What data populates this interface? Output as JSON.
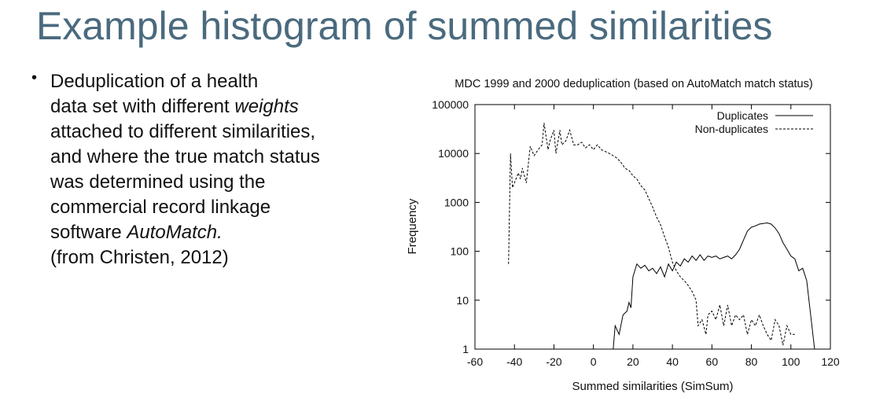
{
  "slide": {
    "title": "Example histogram of summed similarities",
    "bullet_lines": [
      [
        {
          "text": "Deduplication of a health"
        }
      ],
      [
        {
          "text": "data set with different "
        },
        {
          "text": "weights",
          "italic": true
        }
      ],
      [
        {
          "text": "attached to different similarities,"
        }
      ],
      [
        {
          "text": "and where the true match status"
        }
      ],
      [
        {
          "text": "was determined using the"
        }
      ],
      [
        {
          "text": "commercial record linkage"
        }
      ],
      [
        {
          "text": "software "
        },
        {
          "text": "AutoMatch.",
          "italic": true
        }
      ],
      [
        {
          "text": "(from Christen, 2012)"
        }
      ]
    ]
  },
  "chart_data": {
    "type": "line",
    "title": "MDC 1999 and 2000 deduplication (based on AutoMatch match status)",
    "xlabel": "Summed similarities (SimSum)",
    "ylabel": "Frequency",
    "xlim": [
      -60,
      120
    ],
    "ylim": [
      1,
      100000
    ],
    "y_scale": "log",
    "grid": false,
    "legend_position": "top-right",
    "x_ticks": [
      -60,
      -40,
      -20,
      0,
      20,
      40,
      60,
      80,
      100,
      120
    ],
    "y_ticks": [
      1,
      10,
      100,
      1000,
      10000,
      100000
    ],
    "y_tick_labels": [
      "1",
      "10",
      "100",
      "1000",
      "10000",
      "100000"
    ],
    "series": [
      {
        "name": "Duplicates",
        "style": "solid",
        "points": [
          [
            -4,
            1
          ],
          [
            2,
            1
          ],
          [
            6,
            1
          ],
          [
            10,
            1
          ],
          [
            11,
            3
          ],
          [
            13,
            2
          ],
          [
            15,
            5
          ],
          [
            17,
            6
          ],
          [
            18,
            9
          ],
          [
            19,
            7
          ],
          [
            20,
            30
          ],
          [
            22,
            55
          ],
          [
            24,
            45
          ],
          [
            26,
            52
          ],
          [
            28,
            40
          ],
          [
            30,
            45
          ],
          [
            32,
            35
          ],
          [
            34,
            48
          ],
          [
            36,
            30
          ],
          [
            38,
            55
          ],
          [
            40,
            40
          ],
          [
            42,
            60
          ],
          [
            44,
            50
          ],
          [
            46,
            70
          ],
          [
            48,
            60
          ],
          [
            50,
            80
          ],
          [
            52,
            65
          ],
          [
            54,
            85
          ],
          [
            56,
            65
          ],
          [
            58,
            80
          ],
          [
            60,
            75
          ],
          [
            62,
            80
          ],
          [
            64,
            70
          ],
          [
            66,
            75
          ],
          [
            68,
            80
          ],
          [
            70,
            70
          ],
          [
            72,
            85
          ],
          [
            74,
            110
          ],
          [
            76,
            170
          ],
          [
            78,
            260
          ],
          [
            80,
            310
          ],
          [
            82,
            330
          ],
          [
            84,
            360
          ],
          [
            86,
            370
          ],
          [
            88,
            380
          ],
          [
            90,
            360
          ],
          [
            92,
            300
          ],
          [
            94,
            230
          ],
          [
            96,
            150
          ],
          [
            98,
            110
          ],
          [
            100,
            80
          ],
          [
            102,
            70
          ],
          [
            104,
            40
          ],
          [
            106,
            45
          ],
          [
            108,
            25
          ],
          [
            110,
            5
          ],
          [
            112,
            1
          ],
          [
            114,
            1
          ]
        ]
      },
      {
        "name": "Non-duplicates",
        "style": "dashed",
        "points": [
          [
            -43,
            55
          ],
          [
            -42,
            10000
          ],
          [
            -41,
            2000
          ],
          [
            -40,
            2500
          ],
          [
            -38,
            4000
          ],
          [
            -37,
            3000
          ],
          [
            -36,
            5000
          ],
          [
            -34,
            2500
          ],
          [
            -32,
            14000
          ],
          [
            -30,
            9000
          ],
          [
            -28,
            12000
          ],
          [
            -26,
            15000
          ],
          [
            -25,
            42000
          ],
          [
            -23,
            12000
          ],
          [
            -22,
            18000
          ],
          [
            -20,
            30000
          ],
          [
            -19,
            10000
          ],
          [
            -17,
            30000
          ],
          [
            -16,
            15000
          ],
          [
            -14,
            18000
          ],
          [
            -12,
            30000
          ],
          [
            -10,
            15000
          ],
          [
            -8,
            15000
          ],
          [
            -6,
            17000
          ],
          [
            -4,
            13000
          ],
          [
            -2,
            15000
          ],
          [
            0,
            12000
          ],
          [
            2,
            15000
          ],
          [
            4,
            12000
          ],
          [
            6,
            11000
          ],
          [
            8,
            10000
          ],
          [
            10,
            9000
          ],
          [
            12,
            8000
          ],
          [
            14,
            6500
          ],
          [
            16,
            5000
          ],
          [
            18,
            4500
          ],
          [
            20,
            3500
          ],
          [
            22,
            3000
          ],
          [
            24,
            2200
          ],
          [
            26,
            1800
          ],
          [
            28,
            1200
          ],
          [
            30,
            800
          ],
          [
            32,
            500
          ],
          [
            34,
            350
          ],
          [
            36,
            200
          ],
          [
            38,
            120
          ],
          [
            40,
            60
          ],
          [
            42,
            40
          ],
          [
            44,
            30
          ],
          [
            46,
            25
          ],
          [
            48,
            20
          ],
          [
            50,
            15
          ],
          [
            52,
            10
          ],
          [
            53,
            3
          ],
          [
            55,
            4
          ],
          [
            57,
            2
          ],
          [
            58,
            5
          ],
          [
            60,
            6
          ],
          [
            62,
            4
          ],
          [
            64,
            8
          ],
          [
            66,
            3
          ],
          [
            68,
            8
          ],
          [
            70,
            3
          ],
          [
            72,
            5
          ],
          [
            74,
            4
          ],
          [
            76,
            5
          ],
          [
            78,
            2
          ],
          [
            80,
            4
          ],
          [
            82,
            3
          ],
          [
            84,
            5
          ],
          [
            86,
            3
          ],
          [
            88,
            2
          ],
          [
            90,
            1.5
          ],
          [
            92,
            4
          ],
          [
            94,
            3
          ],
          [
            96,
            1.2
          ],
          [
            98,
            3
          ],
          [
            100,
            2
          ],
          [
            102,
            2
          ]
        ]
      }
    ]
  }
}
